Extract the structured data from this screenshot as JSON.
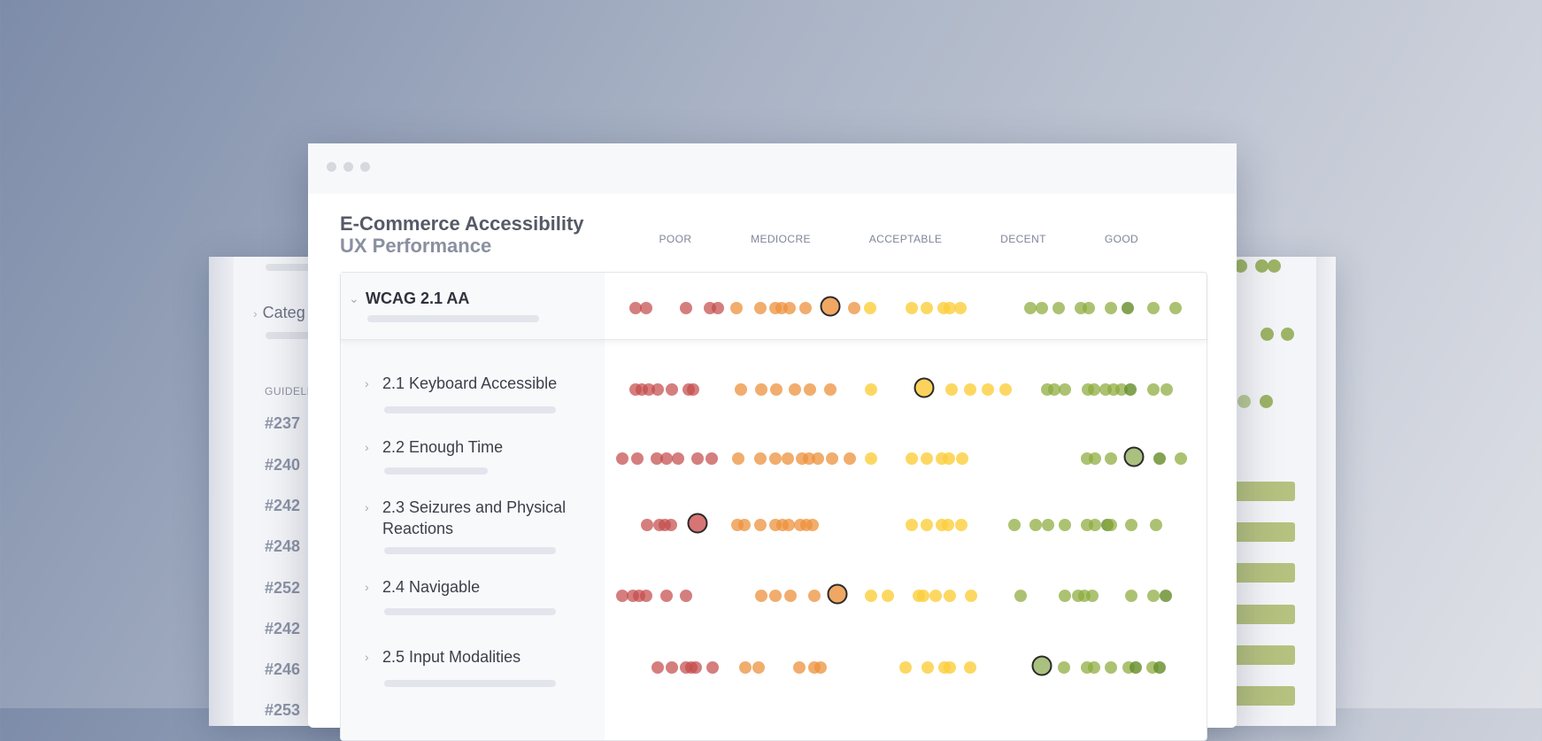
{
  "back": {
    "category_label": "Categ",
    "guidelines_label": "GUIDELI",
    "numbers": [
      "#237",
      "#240",
      "#242",
      "#248",
      "#252",
      "#242",
      "#246",
      "#253"
    ]
  },
  "window": {
    "title": "E-Commerce Accessibility",
    "subtitle": "UX Performance"
  },
  "scale": [
    "POOR",
    "MEDIOCRE",
    "ACCEPTABLE",
    "DECENT",
    "GOOD"
  ],
  "rows": [
    {
      "label": "WCAG 2.1 AA",
      "expanded": true
    },
    {
      "label": "2.1 Keyboard Accessible"
    },
    {
      "label": "2.2 Enough Time"
    },
    {
      "label": "2.3 Seizures and Physical Reactions"
    },
    {
      "label": "2.4 Navigable"
    },
    {
      "label": "2.5 Input Modalities"
    }
  ],
  "colors": {
    "poor": "#c54c4c",
    "mediocre": "#ec923c",
    "acceptable": "#fbce3c",
    "decent": "#8caa3c",
    "good": "#648c28"
  },
  "icons": {
    "expand": "chevron-down-icon",
    "collapse": "chevron-right-icon"
  }
}
